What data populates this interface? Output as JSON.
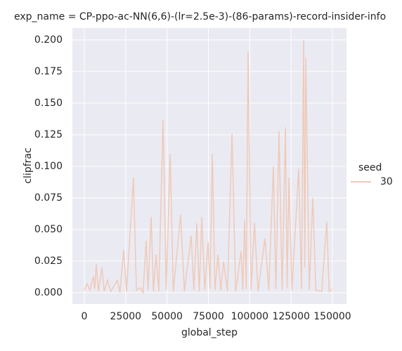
{
  "chart_data": {
    "type": "line",
    "title": "exp_name = CP-ppo-ac-NN(6,6)-(lr=2.5e-3)-(86-params)-record-insider-info",
    "x_label": "global_step",
    "y_label": "clipfrac",
    "legend_title": "seed",
    "x": [
      0,
      1700,
      3400,
      5500,
      6300,
      7200,
      8500,
      10600,
      12000,
      14000,
      16000,
      20000,
      21500,
      23800,
      25500,
      29700,
      31500,
      34000,
      35500,
      37400,
      38500,
      40400,
      41800,
      43400,
      45000,
      47600,
      49500,
      51900,
      53800,
      58200,
      60500,
      64600,
      66200,
      68000,
      69500,
      71000,
      72800,
      74800,
      76000,
      77400,
      79000,
      80800,
      82500,
      84200,
      86500,
      89300,
      91500,
      94800,
      95800,
      96900,
      97900,
      99000,
      100800,
      102900,
      105000,
      109200,
      111500,
      114300,
      115800,
      117700,
      119600,
      121600,
      122600,
      123700,
      125500,
      129600,
      131300,
      132600,
      133300,
      133900,
      136000,
      138100,
      140000,
      143500,
      146600,
      148000,
      150000
    ],
    "series": [
      {
        "name": "30",
        "color": "#efcab9",
        "values": [
          0.002,
          0.007,
          0.002,
          0.013,
          0.003,
          0.023,
          0.001,
          0.02,
          0.001,
          0.01,
          0.001,
          0.01,
          0.0,
          0.034,
          0.001,
          0.091,
          0.002,
          0.004,
          0.0,
          0.041,
          0.002,
          0.06,
          0.001,
          0.03,
          0.001,
          0.137,
          0.002,
          0.11,
          0.001,
          0.062,
          0.001,
          0.045,
          0.002,
          0.055,
          0.001,
          0.06,
          0.002,
          0.04,
          0.003,
          0.11,
          0.002,
          0.03,
          0.002,
          0.025,
          0.001,
          0.126,
          0.001,
          0.033,
          0.002,
          0.057,
          0.003,
          0.191,
          0.002,
          0.055,
          0.001,
          0.043,
          0.002,
          0.1,
          0.003,
          0.128,
          0.002,
          0.131,
          0.004,
          0.091,
          0.002,
          0.098,
          0.003,
          0.2,
          0.02,
          0.186,
          0.002,
          0.075,
          0.002,
          0.001,
          0.056,
          0.001,
          0.003
        ]
      }
    ],
    "xlim": [
      -7224,
      158500
    ],
    "ylim": [
      -0.0089,
      0.2094
    ],
    "xticks": [
      0,
      25000,
      50000,
      75000,
      100000,
      125000,
      150000
    ],
    "yticks": [
      {
        "value": 0,
        "label": "0.000"
      },
      {
        "value": 0.025,
        "label": "0.025"
      },
      {
        "value": 0.05,
        "label": "0.050"
      },
      {
        "value": 0.075,
        "label": "0.075"
      },
      {
        "value": 0.1,
        "label": "0.100"
      },
      {
        "value": 0.125,
        "label": "0.125"
      },
      {
        "value": 0.15,
        "label": "0.150"
      },
      {
        "value": 0.175,
        "label": "0.175"
      },
      {
        "value": 0.2,
        "label": "0.200"
      }
    ],
    "grid": true
  }
}
